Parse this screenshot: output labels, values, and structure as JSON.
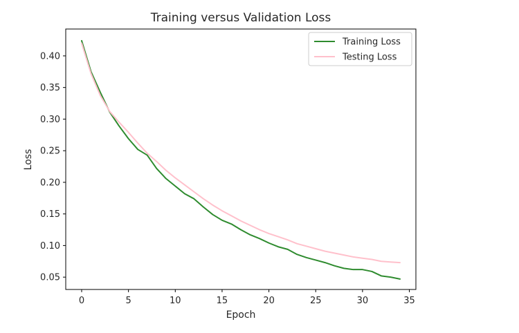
{
  "chart_data": {
    "type": "line",
    "title": "Training versus Validation Loss",
    "xlabel": "Epoch",
    "ylabel": "Loss",
    "xlim": [
      -1.7,
      35.7
    ],
    "ylim": [
      0.0305,
      0.4425
    ],
    "xticks": [
      0,
      5,
      10,
      15,
      20,
      25,
      30,
      35
    ],
    "yticks": [
      0.05,
      0.1,
      0.15,
      0.2,
      0.25,
      0.3,
      0.35,
      0.4
    ],
    "ytick_labels": [
      "0.05",
      "0.10",
      "0.15",
      "0.20",
      "0.25",
      "0.30",
      "0.35",
      "0.40"
    ],
    "grid": false,
    "legend_position": "top-right",
    "x": [
      0,
      1,
      2,
      3,
      4,
      5,
      6,
      7,
      8,
      9,
      10,
      11,
      12,
      13,
      14,
      15,
      16,
      17,
      18,
      19,
      20,
      21,
      22,
      23,
      24,
      25,
      26,
      27,
      28,
      29,
      30,
      31,
      32,
      33,
      34
    ],
    "series": [
      {
        "name": "Training Loss",
        "color": "#2e8b2e",
        "values": [
          0.424,
          0.375,
          0.342,
          0.311,
          0.289,
          0.269,
          0.252,
          0.243,
          0.222,
          0.206,
          0.194,
          0.182,
          0.174,
          0.161,
          0.149,
          0.14,
          0.134,
          0.125,
          0.117,
          0.111,
          0.104,
          0.098,
          0.094,
          0.086,
          0.081,
          0.077,
          0.073,
          0.068,
          0.064,
          0.062,
          0.062,
          0.059,
          0.052,
          0.05,
          0.047
        ]
      },
      {
        "name": "Testing Loss",
        "color": "#ffc0cb",
        "values": [
          0.42,
          0.372,
          0.337,
          0.312,
          0.295,
          0.279,
          0.262,
          0.246,
          0.233,
          0.219,
          0.207,
          0.196,
          0.185,
          0.174,
          0.164,
          0.155,
          0.147,
          0.139,
          0.132,
          0.125,
          0.119,
          0.114,
          0.109,
          0.103,
          0.099,
          0.095,
          0.091,
          0.088,
          0.085,
          0.082,
          0.08,
          0.078,
          0.075,
          0.074,
          0.073
        ]
      }
    ]
  }
}
